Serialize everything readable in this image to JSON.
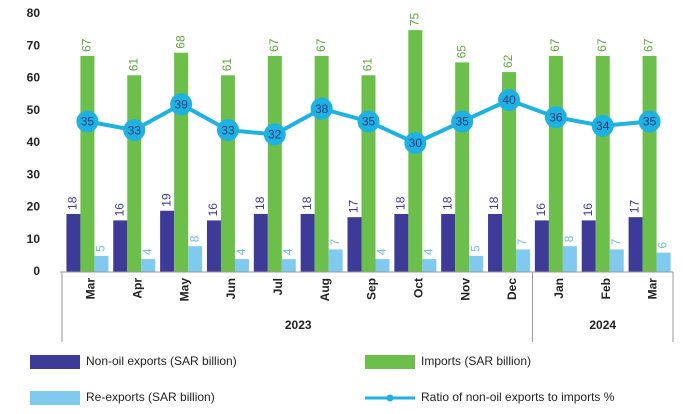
{
  "chart_data": {
    "type": "bar",
    "categories": [
      "Mar",
      "Apr",
      "May",
      "Jun",
      "Jul",
      "Aug",
      "Sep",
      "Oct",
      "Nov",
      "Dec",
      "Jan",
      "Feb",
      "Mar"
    ],
    "category_groups": [
      {
        "name": "2023",
        "count": 10
      },
      {
        "name": "2024",
        "count": 3
      }
    ],
    "series": [
      {
        "name": "Non-oil exports (SAR billion)",
        "color": "#3d3b97",
        "type": "bar",
        "values": [
          18,
          16,
          19,
          16,
          18,
          18,
          17,
          18,
          18,
          18,
          16,
          16,
          17
        ]
      },
      {
        "name": "Imports (SAR billion)",
        "color": "#6dbf4b",
        "type": "bar",
        "values": [
          67,
          61,
          68,
          61,
          67,
          67,
          61,
          75,
          65,
          62,
          67,
          67,
          67
        ]
      },
      {
        "name": "Re-exports (SAR billion)",
        "color": "#80caf0",
        "type": "bar",
        "values": [
          5,
          4,
          8,
          4,
          4,
          7,
          4,
          4,
          5,
          7,
          8,
          7,
          6
        ]
      },
      {
        "name": "Ratio of non-oil exports to imports %",
        "color": "#1eb2e2",
        "type": "line",
        "axis": "y2",
        "values": [
          35,
          33,
          39,
          33,
          32,
          38,
          35,
          30,
          35,
          40,
          36,
          34,
          35
        ]
      }
    ],
    "ylim": [
      0,
      80
    ],
    "yticks": [
      0,
      10,
      20,
      30,
      40,
      50,
      60,
      70,
      80
    ],
    "y2lim": [
      0,
      60
    ],
    "grid": false
  }
}
